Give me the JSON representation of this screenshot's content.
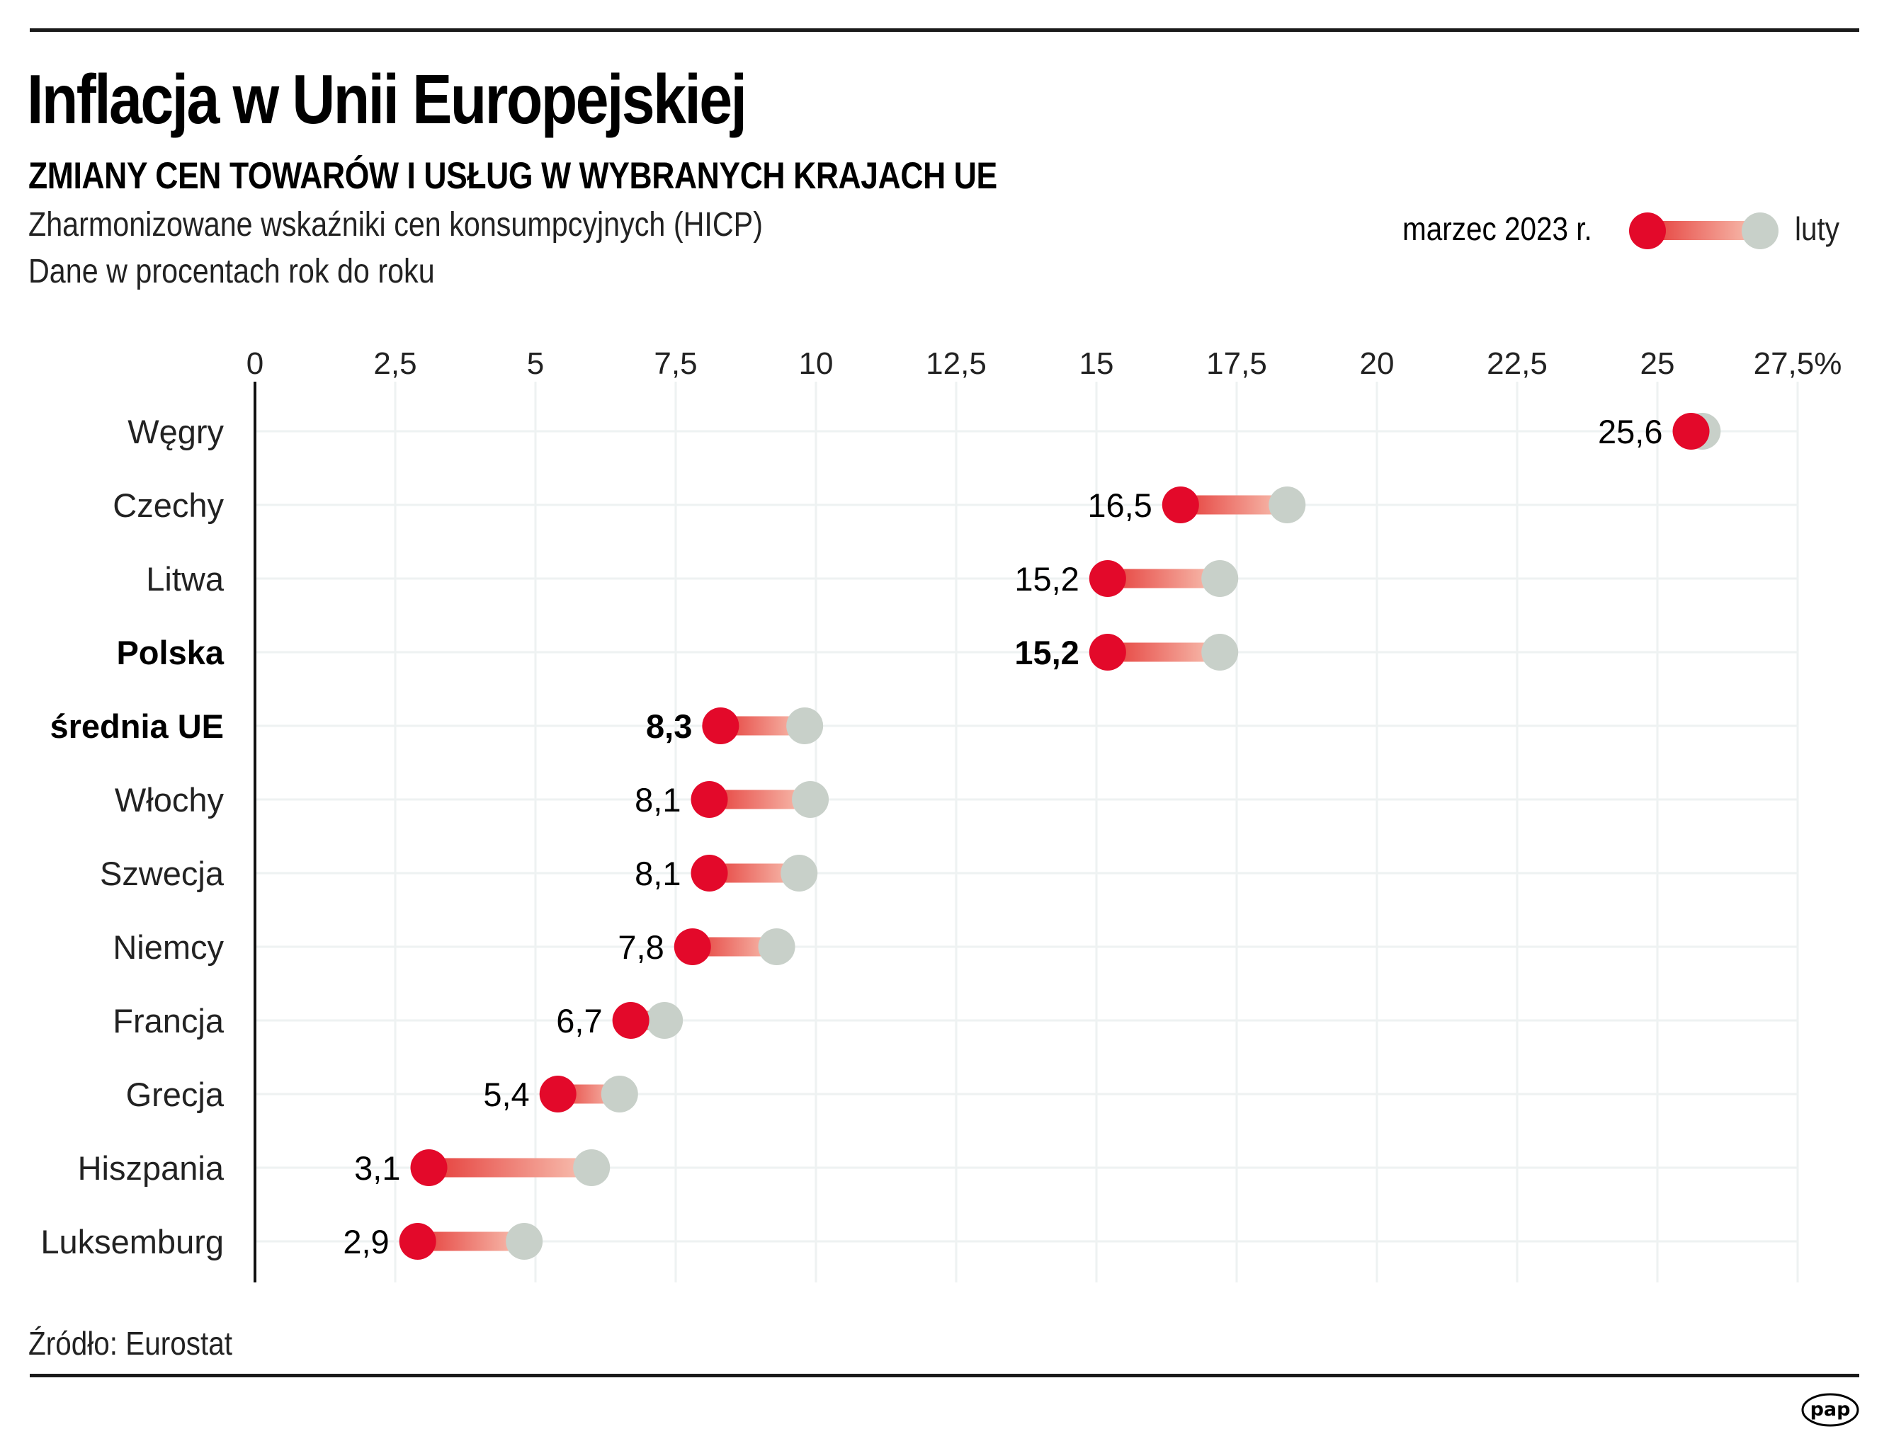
{
  "header": {
    "title": "Inflacja w Unii Europejskiej",
    "subtitle": "ZMIANY CEN TOWARÓW I USŁUG W WYBRANYCH KRAJACH UE",
    "description_lines": [
      "Zharmonizowane wskaźniki cen konsumpcyjnych (HICP)",
      "Dane w procentach rok do roku"
    ]
  },
  "legend": {
    "current_label": "marzec 2023 r.",
    "previous_label": "luty",
    "current_icon": "red-dot-icon",
    "previous_icon": "gray-dot-icon"
  },
  "colors": {
    "current": "#e3092a",
    "previous": "#c8d0c9",
    "bar_start": "#e53d3a",
    "bar_end": "#f8c4b4",
    "grid": "#eef2f2",
    "axis": "#111111"
  },
  "footer": {
    "source": "Źródło: Eurostat",
    "logo_text": "pap",
    "logo_icon": "pap-logo-icon"
  },
  "chart_data": {
    "type": "dumbbell",
    "title": "Inflacja w Unii Europejskiej",
    "subtitle": "ZMIANY CEN TOWARÓW I USŁUG W WYBRANYCH KRAJACH UE",
    "xlabel": "",
    "ylabel": "",
    "unit": "%",
    "xlim": [
      0,
      27.5
    ],
    "x_ticks": [
      0,
      2.5,
      5,
      7.5,
      10,
      12.5,
      15,
      17.5,
      20,
      22.5,
      25,
      27.5
    ],
    "x_tick_labels": [
      "0",
      "2,5",
      "5",
      "7,5",
      "10",
      "12,5",
      "15",
      "17,5",
      "20",
      "22,5",
      "25",
      "27,5%"
    ],
    "grid": true,
    "legend_position": "top-right",
    "categories": [
      "Węgry",
      "Czechy",
      "Litwa",
      "Polska",
      "średnia UE",
      "Włochy",
      "Szwecja",
      "Niemcy",
      "Francja",
      "Grecja",
      "Hiszpania",
      "Luksemburg"
    ],
    "highlighted": [
      "Polska",
      "średnia UE"
    ],
    "series": [
      {
        "name": "marzec 2023 r.",
        "values": [
          25.6,
          16.5,
          15.2,
          15.2,
          8.3,
          8.1,
          8.1,
          7.8,
          6.7,
          5.4,
          3.1,
          2.9
        ],
        "labels": [
          "25,6",
          "16,5",
          "15,2",
          "15,2",
          "8,3",
          "8,1",
          "8,1",
          "7,8",
          "6,7",
          "5,4",
          "3,1",
          "2,9"
        ]
      },
      {
        "name": "luty",
        "values": [
          25.8,
          18.4,
          17.2,
          17.2,
          9.8,
          9.9,
          9.7,
          9.3,
          7.3,
          6.5,
          6.0,
          4.8
        ]
      }
    ]
  }
}
